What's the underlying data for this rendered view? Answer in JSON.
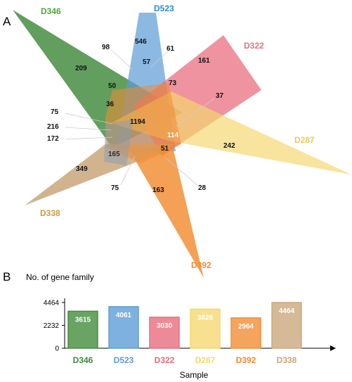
{
  "panel_a": {
    "letter": "A"
  },
  "panel_b": {
    "letter": "B"
  },
  "colors": {
    "D346": "#3f8a3a",
    "D523": "#5b9bd5",
    "D322": "#e8697a",
    "D287": "#f5d76e",
    "D392": "#f28b30",
    "D338": "#c9a77a"
  },
  "chart_data": [
    {
      "type": "venn",
      "sets": [
        "D346",
        "D523",
        "D322",
        "D287",
        "D392",
        "D338"
      ],
      "unique": {
        "D346": 209,
        "D523": 546,
        "D322": 161,
        "D287": 242,
        "D392": 163,
        "D338": 349
      },
      "core": 1194,
      "other_counts": [
        98,
        61,
        57,
        73,
        50,
        36,
        37,
        114,
        51,
        165,
        75,
        216,
        172,
        75,
        28
      ]
    },
    {
      "type": "bar",
      "title": "",
      "ylabel": "No. of gene family",
      "xlabel": "Sample",
      "categories": [
        "D346",
        "D523",
        "D322",
        "D287",
        "D392",
        "D338"
      ],
      "values": [
        3615,
        4061,
        3030,
        3826,
        2964,
        4464
      ],
      "yticks": [
        0,
        2232,
        4464
      ],
      "ylim": [
        0,
        4464
      ],
      "grid": false,
      "legend": "none"
    }
  ]
}
